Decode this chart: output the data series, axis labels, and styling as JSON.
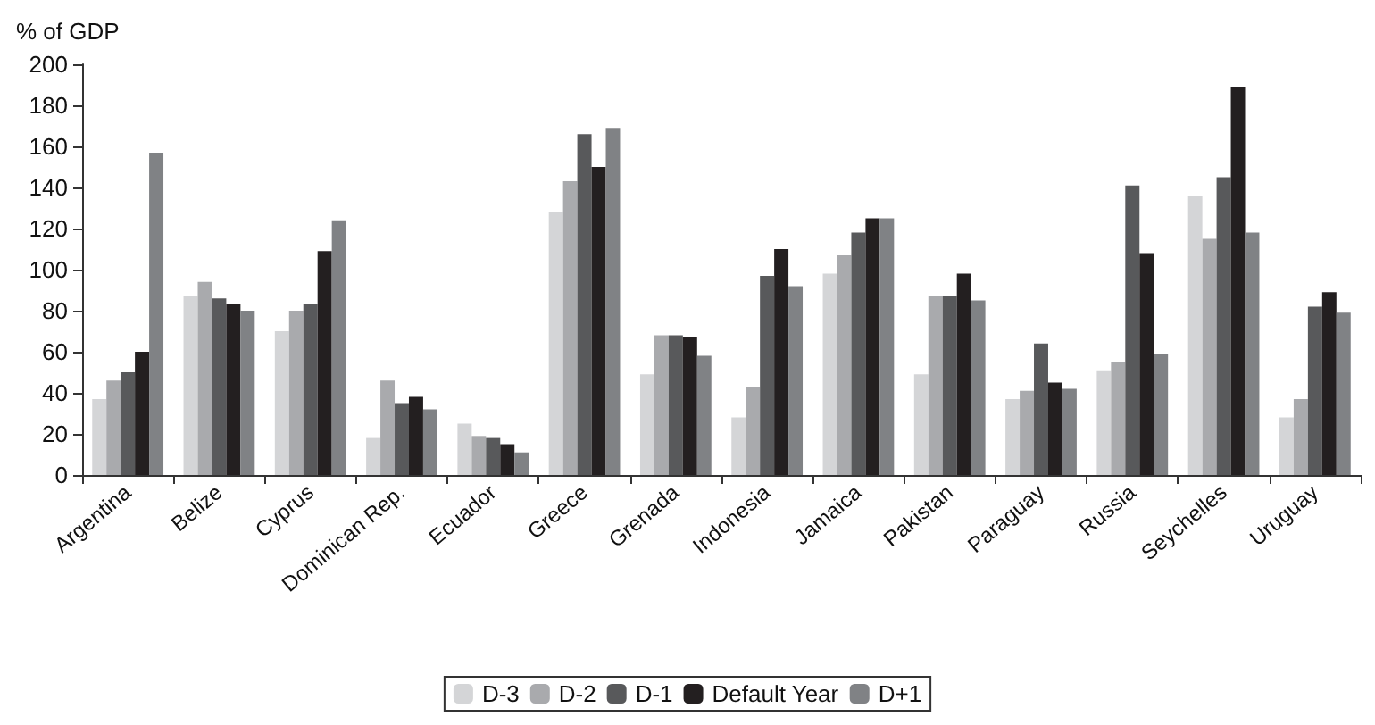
{
  "chart_data": {
    "type": "bar",
    "ylabel": "% of GDP",
    "categories": [
      "Argentina",
      "Belize",
      "Cyprus",
      "Dominican Rep.",
      "Ecuador",
      "Greece",
      "Grenada",
      "Indonesia",
      "Jamaica",
      "Pakistan",
      "Paraguay",
      "Russia",
      "Seychelles",
      "Uruguay"
    ],
    "series": [
      {
        "name": "D-3",
        "color": "#d4d5d7",
        "values": [
          37,
          87,
          70,
          18,
          25,
          128,
          49,
          28,
          98,
          49,
          37,
          51,
          136,
          28
        ]
      },
      {
        "name": "D-2",
        "color": "#a9aaad",
        "values": [
          46,
          94,
          80,
          46,
          19,
          143,
          68,
          43,
          107,
          87,
          41,
          55,
          115,
          37
        ]
      },
      {
        "name": "D-1",
        "color": "#58595b",
        "values": [
          50,
          86,
          83,
          35,
          18,
          166,
          68,
          97,
          118,
          87,
          64,
          141,
          145,
          82
        ]
      },
      {
        "name": "Default Year",
        "color": "#231f20",
        "values": [
          60,
          83,
          109,
          38,
          15,
          150,
          67,
          110,
          125,
          98,
          45,
          108,
          189,
          89
        ]
      },
      {
        "name": "D+1",
        "color": "#808285",
        "values": [
          157,
          80,
          124,
          32,
          11,
          169,
          58,
          92,
          125,
          85,
          42,
          59,
          118,
          79
        ]
      }
    ],
    "ylim": [
      0,
      200
    ],
    "yticks": [
      0,
      20,
      40,
      60,
      80,
      100,
      120,
      140,
      160,
      180,
      200
    ],
    "grid": false,
    "legend": "bottom"
  }
}
